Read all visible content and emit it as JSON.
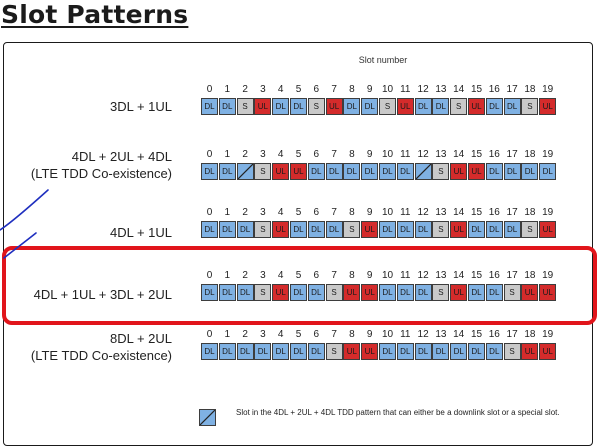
{
  "title": "Slot Patterns",
  "figure": {
    "axis_title": "Slot number",
    "slot_numbers": [
      "0",
      "1",
      "2",
      "3",
      "4",
      "5",
      "6",
      "7",
      "8",
      "9",
      "10",
      "11",
      "12",
      "13",
      "14",
      "15",
      "16",
      "17",
      "18",
      "19"
    ],
    "rows": [
      {
        "label_lines": [
          "3DL + 1UL"
        ],
        "slots": [
          "DL",
          "DL",
          "S",
          "UL",
          "DL",
          "DL",
          "S",
          "UL",
          "DL",
          "DL",
          "S",
          "UL",
          "DL",
          "DL",
          "S",
          "UL",
          "DL",
          "DL",
          "S",
          "UL"
        ]
      },
      {
        "label_lines": [
          "4DL + 2UL + 4DL",
          "(LTE TDD Co-existence)"
        ],
        "slots": [
          "DL",
          "DL",
          "X",
          "S",
          "UL",
          "UL",
          "DL",
          "DL",
          "DL",
          "DL",
          "DL",
          "DL",
          "X",
          "S",
          "UL",
          "UL",
          "DL",
          "DL",
          "DL",
          "DL"
        ]
      },
      {
        "label_lines": [
          "4DL + 1UL"
        ],
        "slots": [
          "DL",
          "DL",
          "DL",
          "S",
          "UL",
          "DL",
          "DL",
          "DL",
          "S",
          "UL",
          "DL",
          "DL",
          "DL",
          "S",
          "UL",
          "DL",
          "DL",
          "DL",
          "S",
          "UL"
        ]
      },
      {
        "label_lines": [
          "4DL + 1UL + 3DL + 2UL"
        ],
        "slots": [
          "DL",
          "DL",
          "DL",
          "S",
          "UL",
          "DL",
          "DL",
          "S",
          "UL",
          "UL",
          "DL",
          "DL",
          "DL",
          "S",
          "UL",
          "DL",
          "DL",
          "S",
          "UL",
          "UL"
        ]
      },
      {
        "label_lines": [
          "8DL + 2UL",
          "(LTE TDD Co-existence)"
        ],
        "slots": [
          "DL",
          "DL",
          "DL",
          "DL",
          "DL",
          "DL",
          "DL",
          "S",
          "UL",
          "UL",
          "DL",
          "DL",
          "DL",
          "DL",
          "DL",
          "DL",
          "DL",
          "S",
          "UL",
          "UL"
        ]
      }
    ],
    "legend_text": "Slot in the 4DL + 2UL + 4DL TDD pattern that can either be a downlink slot or a special slot.",
    "colors": {
      "DL": "#7fb1e3",
      "UL": "#d42b2b",
      "S": "#c9c9c9",
      "highlight": "#e1151b",
      "pen": "#1f2fbf"
    },
    "highlighted_row_index": 3
  }
}
